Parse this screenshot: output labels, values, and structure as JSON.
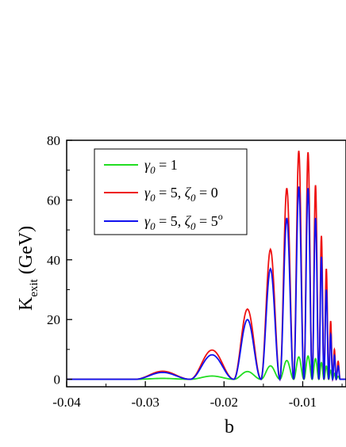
{
  "chart_data": {
    "type": "line",
    "xlabel": "b",
    "ylabel": "K",
    "ylabel_sub": "exit",
    "ylabel_unit": " (GeV)",
    "xlim": [
      -0.04,
      -0.0045
    ],
    "ylim": [
      -2.5,
      80
    ],
    "xticks": [
      -0.04,
      -0.03,
      -0.02,
      -0.01
    ],
    "xtick_labels": [
      "-0.04",
      "-0.03",
      "-0.02",
      "-0.01"
    ],
    "yticks": [
      0,
      20,
      40,
      60,
      80
    ],
    "ytick_labels": [
      "0",
      "20",
      "40",
      "60",
      "80"
    ],
    "legend_position": "top-left",
    "series": [
      {
        "name": "γ₀ = 1",
        "color": "#22dd22",
        "peaks": [
          [
            -0.0278,
            0.3
          ],
          [
            -0.0208,
            1.1
          ],
          [
            -0.0167,
            2.6
          ],
          [
            -0.0139,
            4.5
          ],
          [
            -0.0119,
            6.3
          ],
          [
            -0.0104,
            7.5
          ],
          [
            -0.0093,
            7.8
          ],
          [
            -0.0083,
            6.9
          ],
          [
            -0.0076,
            5.6
          ],
          [
            -0.007,
            4.4
          ],
          [
            -0.0064,
            3.0
          ],
          [
            -0.006,
            2.0
          ],
          [
            -0.0055,
            1.0
          ]
        ]
      },
      {
        "name": "γ₀ = 5, ζ₀ = 0",
        "color": "#ee1111",
        "peaks": [
          [
            -0.0278,
            2.7
          ],
          [
            -0.0208,
            9.8
          ],
          [
            -0.0167,
            23.5
          ],
          [
            -0.0139,
            43.5
          ],
          [
            -0.0119,
            64.0
          ],
          [
            -0.0104,
            76.5
          ],
          [
            -0.0093,
            76.0
          ],
          [
            -0.0083,
            65.0
          ],
          [
            -0.0076,
            48.0
          ],
          [
            -0.007,
            37.0
          ],
          [
            -0.0064,
            19.5
          ],
          [
            -0.006,
            10.0
          ],
          [
            -0.0055,
            6.0
          ]
        ]
      },
      {
        "name": "γ₀ = 5, ζ₀ = 5ᵒ",
        "color": "#1111ee",
        "peaks": [
          [
            -0.0278,
            2.3
          ],
          [
            -0.0208,
            8.2
          ],
          [
            -0.0167,
            20.0
          ],
          [
            -0.0139,
            37.0
          ],
          [
            -0.0119,
            54.0
          ],
          [
            -0.0104,
            64.5
          ],
          [
            -0.0093,
            64.0
          ],
          [
            -0.0083,
            54.0
          ],
          [
            -0.0076,
            41.0
          ],
          [
            -0.007,
            30.0
          ],
          [
            -0.0064,
            15.0
          ],
          [
            -0.006,
            8.0
          ],
          [
            -0.0055,
            4.5
          ]
        ]
      }
    ],
    "legend": [
      {
        "g": "γ",
        "sub": "0",
        "rest": " = 1"
      },
      {
        "g": "γ",
        "sub": "0",
        "rest": " = 5, ",
        "g2": "ζ",
        "sub2": "0",
        "rest2": " = 0"
      },
      {
        "g": "γ",
        "sub": "0",
        "rest": " = 5, ",
        "g2": "ζ",
        "sub2": "0",
        "rest2": " = 5",
        "sup": "o"
      }
    ]
  }
}
